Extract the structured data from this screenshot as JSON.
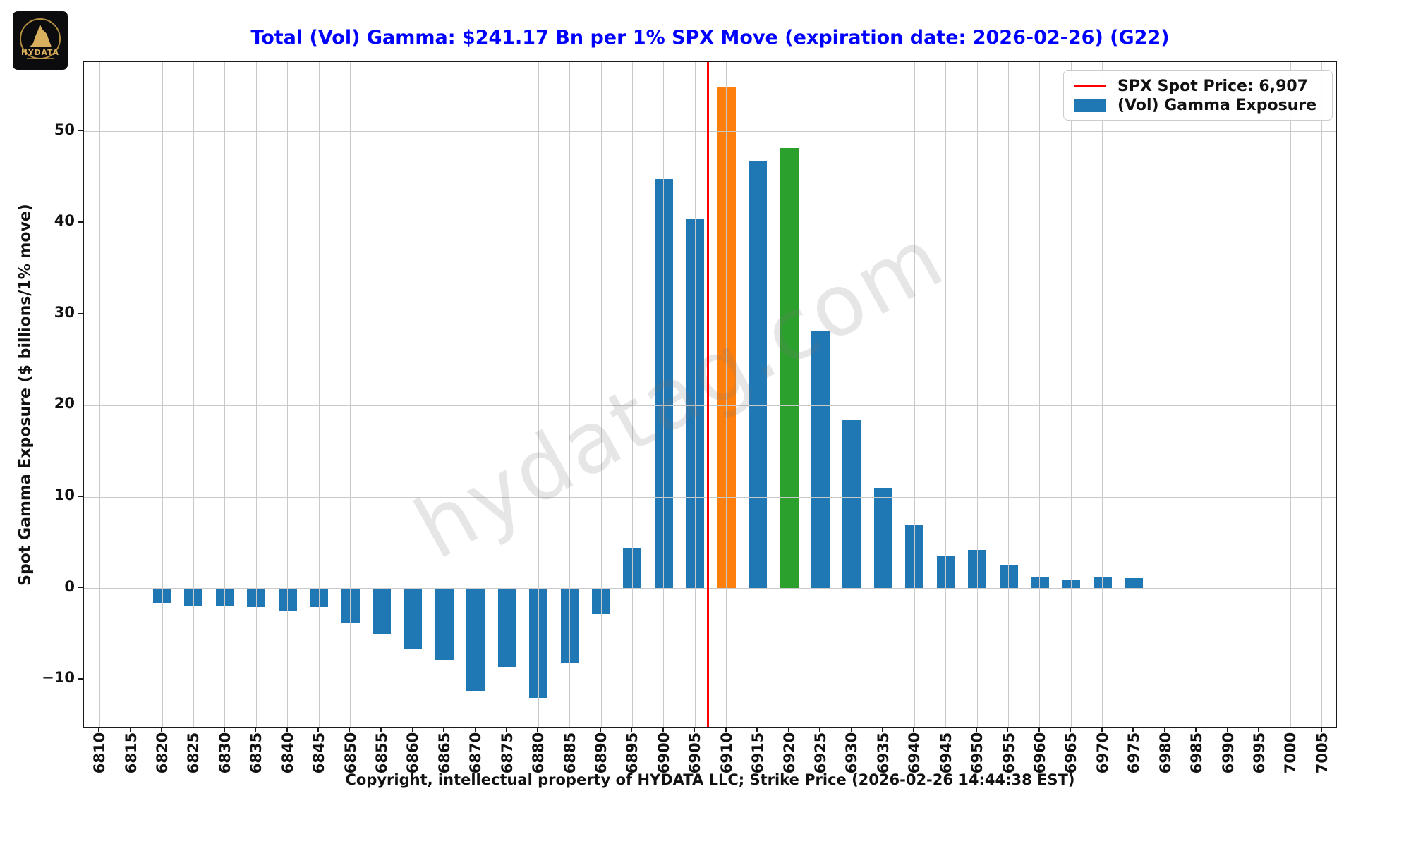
{
  "logo": {
    "brand": "HYDATA"
  },
  "title": {
    "text": "Total (Vol) Gamma: $241.17 Bn per 1% SPX Move (expiration date: 2026-02-26) (G22)",
    "color": "#0000ff"
  },
  "legend": {
    "spot_label": "SPX Spot Price: 6,907",
    "gamma_label": "(Vol) Gamma Exposure",
    "line_color": "#ff0000",
    "swatch_color": "#1f77b4"
  },
  "watermark": {
    "text": "hydatag.com"
  },
  "axes": {
    "y_label": "Spot Gamma Exposure ($ billions/1% move)",
    "x_caption": "Copyright, intellectual property of HYDATA LLC; Strike Price (2026-02-26 14:44:38 EST)",
    "y_ticks": [
      -10,
      0,
      10,
      20,
      30,
      40,
      50
    ]
  },
  "chart_data": {
    "type": "bar",
    "title": "Total (Vol) Gamma: $241.17 Bn per 1% SPX Move (expiration date: 2026-02-26) (G22)",
    "xlabel": "Strike Price",
    "ylabel": "Spot Gamma Exposure ($ billions/1% move)",
    "categories": [
      6810,
      6815,
      6820,
      6825,
      6830,
      6835,
      6840,
      6845,
      6850,
      6855,
      6860,
      6865,
      6870,
      6875,
      6880,
      6885,
      6890,
      6895,
      6900,
      6905,
      6910,
      6915,
      6920,
      6925,
      6930,
      6935,
      6940,
      6945,
      6950,
      6955,
      6960,
      6965,
      6970,
      6975,
      6980,
      6985,
      6990,
      6995,
      7000,
      7005
    ],
    "values": [
      0,
      0,
      -1.6,
      -1.9,
      -1.9,
      -2.0,
      -2.4,
      -2.0,
      -3.8,
      -5.0,
      -6.6,
      -7.8,
      -11.2,
      -8.6,
      -12.0,
      -8.2,
      -2.8,
      4.4,
      44.8,
      40.5,
      54.9,
      46.7,
      48.2,
      28.2,
      18.4,
      11.0,
      7.0,
      3.5,
      4.2,
      2.6,
      1.3,
      1.0,
      1.2,
      1.1,
      0,
      0,
      0,
      0,
      0,
      0
    ],
    "total_gamma_bn": 241.17,
    "spot_price": 6907,
    "bar_color_default": "#1f77b4",
    "bar_color_overrides": {
      "6910": "#ff7f0e",
      "6920": "#2ca02c"
    },
    "spot_line_color": "#ff0000",
    "grid": true,
    "grid_color": "#c9c9c9",
    "ylim": [
      -15.3,
      57.6
    ],
    "legend_position": "upper right"
  }
}
